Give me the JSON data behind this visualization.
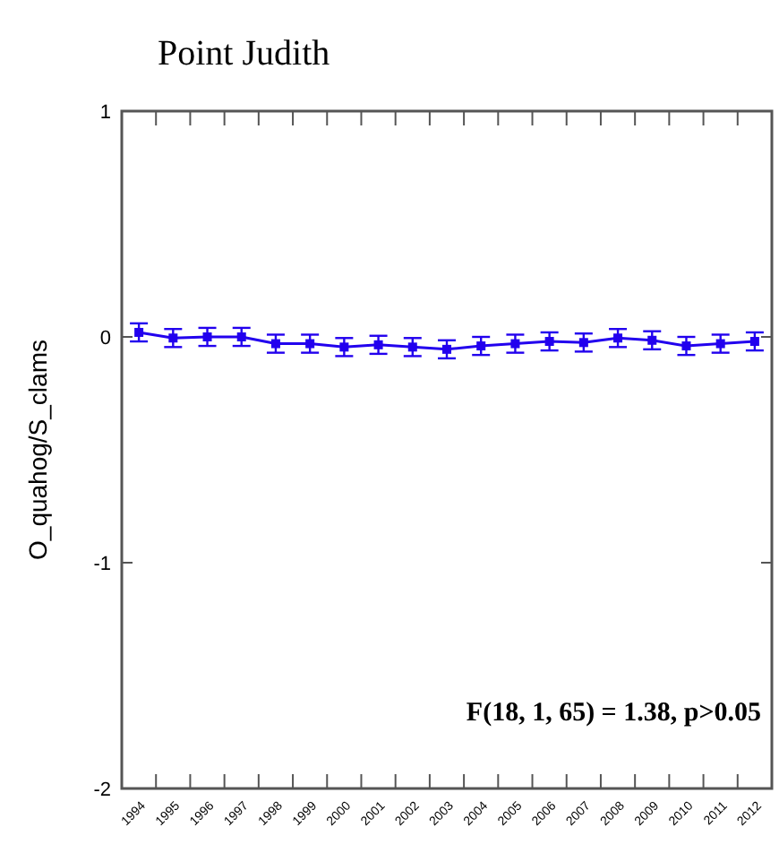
{
  "chart_data": {
    "type": "line",
    "title": "Point Judith",
    "ylabel": "O_quahog/S_clams",
    "categories": [
      "1994",
      "1995",
      "1996",
      "1997",
      "1998",
      "1999",
      "2000",
      "2001",
      "2002",
      "2003",
      "2004",
      "2005",
      "2006",
      "2007",
      "2008",
      "2009",
      "2010",
      "2011",
      "2012"
    ],
    "series": [
      {
        "color": "#2200ee",
        "values": [
          0.02,
          -0.005,
          0,
          0,
          -0.03,
          -0.03,
          -0.045,
          -0.035,
          -0.045,
          -0.055,
          -0.04,
          -0.03,
          -0.02,
          -0.025,
          -0.005,
          -0.015,
          -0.04,
          -0.03,
          -0.02
        ],
        "errors": [
          0.04,
          0.04,
          0.04,
          0.04,
          0.04,
          0.04,
          0.04,
          0.04,
          0.04,
          0.04,
          0.04,
          0.04,
          0.04,
          0.04,
          0.04,
          0.04,
          0.04,
          0.04,
          0.04
        ]
      }
    ],
    "ylim": [
      -2,
      1
    ],
    "yticks": [
      -2,
      -1,
      0,
      1
    ],
    "marker": "square",
    "line_style": "solid",
    "annotations": [
      {
        "text": "F(18, 1, 65) = 1.38, p>0.05"
      }
    ]
  }
}
